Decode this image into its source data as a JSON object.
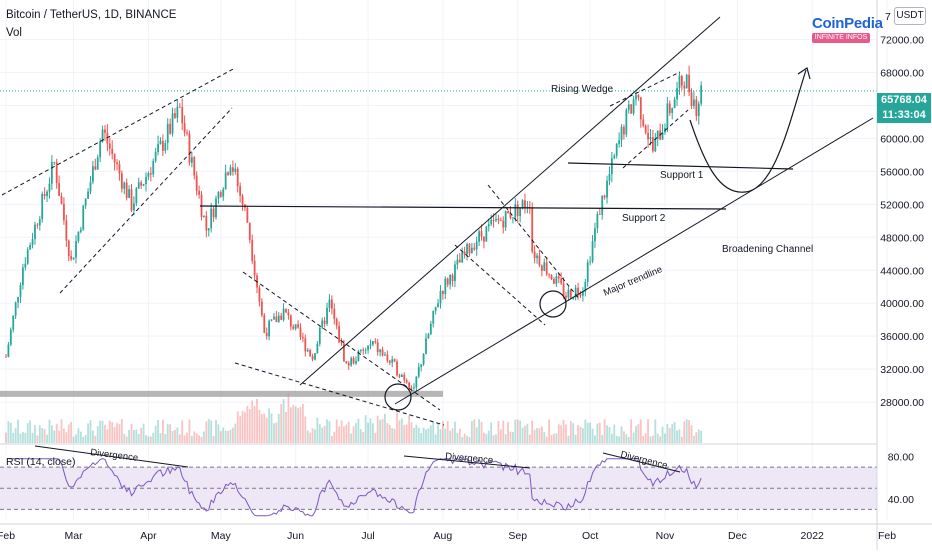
{
  "header": {
    "symbol_line": "Bitcoin / TetherUS, 1D, BINANCE",
    "volume_label": "Vol",
    "currency_button": "USDT",
    "logo_text": "CoinPedia",
    "logo_subtext": "INFINITE INFOS"
  },
  "current_price": {
    "value": "65768.04",
    "countdown": "11:33:04",
    "color": "#26a69a"
  },
  "colors": {
    "up": "#26a69a",
    "down": "#ef5350",
    "rsi_line": "#7e57c2",
    "rsi_band": "#ede7f6",
    "lines": "#131722",
    "grid": "#f0f3fa"
  },
  "annotations": {
    "rising_wedge": "Rising Wedge",
    "support1": "Support  1",
    "support2": "Support 2",
    "broadening": "Broadening Channel",
    "major_trendline": "Major trendline",
    "divergence": "Divergence"
  },
  "chart_data": {
    "type": "candlestick",
    "symbol": "Bitcoin / TetherUS",
    "timeframe": "1D",
    "exchange": "BINANCE",
    "y_axis_ticks": [
      28000,
      32000,
      36000,
      40000,
      44000,
      48000,
      52000,
      56000,
      60000,
      64000,
      68000,
      72000
    ],
    "ylim": [
      23400,
      76800
    ],
    "x_axis_ticks": [
      "Feb",
      "Mar",
      "Apr",
      "May",
      "Jun",
      "Jul",
      "Aug",
      "Sep",
      "Oct",
      "Nov",
      "Dec",
      "2022",
      "Feb"
    ],
    "close_path": [
      {
        "date": "2021-02-01",
        "close": 33500
      },
      {
        "date": "2021-02-08",
        "close": 44500
      },
      {
        "date": "2021-02-21",
        "close": 57000
      },
      {
        "date": "2021-02-28",
        "close": 45000
      },
      {
        "date": "2021-03-13",
        "close": 61000
      },
      {
        "date": "2021-03-25",
        "close": 52000
      },
      {
        "date": "2021-04-14",
        "close": 63500
      },
      {
        "date": "2021-04-25",
        "close": 49000
      },
      {
        "date": "2021-05-05",
        "close": 57500
      },
      {
        "date": "2021-05-12",
        "close": 50000
      },
      {
        "date": "2021-05-19",
        "close": 36500
      },
      {
        "date": "2021-05-27",
        "close": 39000
      },
      {
        "date": "2021-06-08",
        "close": 33500
      },
      {
        "date": "2021-06-15",
        "close": 40000
      },
      {
        "date": "2021-06-22",
        "close": 32500
      },
      {
        "date": "2021-07-03",
        "close": 35000
      },
      {
        "date": "2021-07-20",
        "close": 29800
      },
      {
        "date": "2021-07-31",
        "close": 41500
      },
      {
        "date": "2021-08-14",
        "close": 47500
      },
      {
        "date": "2021-08-22",
        "close": 49500
      },
      {
        "date": "2021-09-06",
        "close": 52500
      },
      {
        "date": "2021-09-07",
        "close": 46500
      },
      {
        "date": "2021-09-21",
        "close": 41000
      },
      {
        "date": "2021-09-28",
        "close": 42000
      },
      {
        "date": "2021-10-05",
        "close": 51500
      },
      {
        "date": "2021-10-15",
        "close": 61500
      },
      {
        "date": "2021-10-20",
        "close": 65500
      },
      {
        "date": "2021-10-27",
        "close": 58500
      },
      {
        "date": "2021-11-02",
        "close": 63000
      },
      {
        "date": "2021-11-09",
        "close": 67500
      },
      {
        "date": "2021-11-14",
        "close": 64000
      },
      {
        "date": "2021-11-16",
        "close": 65768
      }
    ],
    "volume_spike": {
      "date": "2021-05-19",
      "note": "largest volume bars around May crash"
    },
    "support_levels": [
      {
        "name": "Support  1",
        "price": 58000
      },
      {
        "name": "Support 2",
        "price": 53000
      }
    ],
    "horizontal_zone": {
      "price": 29000
    },
    "rsi": {
      "label": "RSI (14, close)",
      "ticks": [
        40.0,
        80.0
      ],
      "upper_band": 70,
      "lower_band": 30,
      "ylim": [
        20,
        90
      ]
    }
  }
}
